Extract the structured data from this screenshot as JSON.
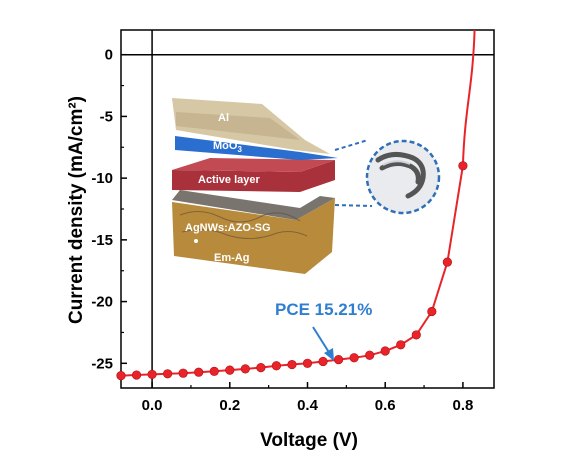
{
  "chart_data": {
    "type": "line",
    "title": "",
    "xlabel": "Voltage (V)",
    "ylabel": "Current density (mA/cm²)",
    "xlim": [
      -0.08,
      0.88
    ],
    "ylim": [
      -27,
      2
    ],
    "x_ticks": [
      0.0,
      0.2,
      0.4,
      0.6,
      0.8
    ],
    "x_tick_labels": [
      "0.0",
      "0.2",
      "0.4",
      "0.6",
      "0.8"
    ],
    "y_ticks": [
      0,
      -5,
      -10,
      -15,
      -20,
      -25
    ],
    "y_tick_labels": [
      "0",
      "-5",
      "-10",
      "-15",
      "-20",
      "-25"
    ],
    "reference_lines": {
      "x": 0,
      "y": 0
    },
    "grid": false,
    "series": [
      {
        "color": "#e8242a",
        "marker": "circle",
        "x": [
          -0.08,
          -0.04,
          0.0,
          0.04,
          0.08,
          0.12,
          0.16,
          0.2,
          0.24,
          0.28,
          0.32,
          0.36,
          0.4,
          0.44,
          0.48,
          0.52,
          0.56,
          0.6,
          0.64,
          0.68,
          0.72,
          0.76,
          0.8
        ],
        "y": [
          -26.0,
          -25.95,
          -25.9,
          -25.85,
          -25.8,
          -25.72,
          -25.65,
          -25.55,
          -25.45,
          -25.35,
          -25.2,
          -25.1,
          -25.0,
          -24.85,
          -24.7,
          -24.55,
          -24.35,
          -24.0,
          -23.5,
          -22.7,
          -20.8,
          -16.8,
          -9.0
        ],
        "curve_extension": {
          "x": [
            0.8,
            0.83
          ],
          "y": [
            -9.0,
            2.0
          ]
        }
      }
    ],
    "annotation": {
      "text": "PCE  15.21%",
      "color": "#2f7fd0",
      "arrow_to": [
        0.45,
        -24.5
      ]
    },
    "inset": {
      "layers": [
        "Al",
        "MoO3",
        "Active layer",
        "AgNWs:AZO-SG",
        "Em-Ag"
      ],
      "colors": {
        "Al": "#d6c7a5",
        "MoO3": "#2a6fcf",
        "Active layer": "#a8313b",
        "AgNWs": "#6e6a66",
        "Em-Ag": "#b88a3c",
        "zoom_circle": "#2f6fb8"
      }
    }
  }
}
